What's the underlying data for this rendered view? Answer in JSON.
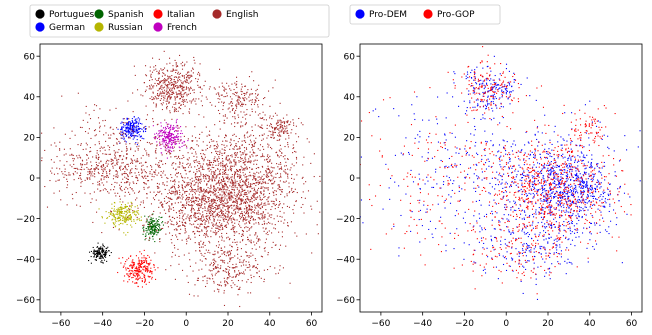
{
  "chart_data": [
    {
      "type": "scatter",
      "title": "",
      "xlabel": "",
      "ylabel": "",
      "xlim": [
        -70,
        65
      ],
      "ylim": [
        -66,
        66
      ],
      "xticks": [
        -60,
        -40,
        -20,
        0,
        20,
        40,
        60
      ],
      "yticks": [
        -60,
        -40,
        -20,
        0,
        20,
        40,
        60
      ],
      "grid": false,
      "legend_position": "top-left, outside above plot, 5 columns",
      "series": [
        {
          "name": "Portuguese",
          "color": "#000000",
          "clusters": [
            {
              "cx": -41,
              "cy": -37,
              "sx": 2.2,
              "sy": 1.8,
              "n": 150
            }
          ]
        },
        {
          "name": "German",
          "color": "#0000ff",
          "clusters": [
            {
              "cx": -26,
              "cy": 24,
              "sx": 3.0,
              "sy": 2.4,
              "n": 220
            }
          ]
        },
        {
          "name": "Spanish",
          "color": "#006400",
          "clusters": [
            {
              "cx": -16,
              "cy": -24,
              "sx": 2.0,
              "sy": 2.8,
              "n": 160
            }
          ]
        },
        {
          "name": "Russian",
          "color": "#b5b500",
          "clusters": [
            {
              "cx": -30,
              "cy": -18,
              "sx": 4.0,
              "sy": 3.0,
              "n": 220
            }
          ]
        },
        {
          "name": "Italian",
          "color": "#ff0000",
          "clusters": [
            {
              "cx": -22,
              "cy": -45,
              "sx": 3.4,
              "sy": 3.5,
              "n": 230
            }
          ]
        },
        {
          "name": "French",
          "color": "#bf00bf",
          "clusters": [
            {
              "cx": -8,
              "cy": 20,
              "sx": 3.4,
              "sy": 3.4,
              "n": 240
            }
          ]
        },
        {
          "name": "English",
          "color": "#a52a2a",
          "clusters": [
            {
              "cx": -6,
              "cy": 45,
              "sx": 7,
              "sy": 6,
              "n": 450
            },
            {
              "cx": 25,
              "cy": -5,
              "sx": 14,
              "sy": 15,
              "n": 1700
            },
            {
              "cx": 5,
              "cy": -12,
              "sx": 12,
              "sy": 12,
              "n": 650
            },
            {
              "cx": -38,
              "cy": 5,
              "sx": 15,
              "sy": 7,
              "n": 380
            },
            {
              "cx": 25,
              "cy": 38,
              "sx": 6,
              "sy": 5,
              "n": 170
            },
            {
              "cx": 45,
              "cy": 25,
              "sx": 4,
              "sy": 3,
              "n": 110
            },
            {
              "cx": 20,
              "cy": -45,
              "sx": 10,
              "sy": 6,
              "n": 250
            },
            {
              "cx": -30,
              "cy": 10,
              "sx": 15,
              "sy": 15,
              "n": 300
            }
          ]
        }
      ]
    },
    {
      "type": "scatter",
      "title": "",
      "xlabel": "",
      "ylabel": "",
      "xlim": [
        -70,
        65
      ],
      "ylim": [
        -66,
        66
      ],
      "xticks": [
        -60,
        -40,
        -20,
        0,
        20,
        40,
        60
      ],
      "yticks": [
        -60,
        -40,
        -20,
        0,
        20,
        40,
        60
      ],
      "grid": false,
      "legend_position": "top-left, outside above plot, 2 columns",
      "series": [
        {
          "name": "Pro-DEM",
          "color": "#0000ff",
          "clusters": [
            {
              "cx": -8,
              "cy": 45,
              "sx": 7,
              "sy": 6,
              "n": 170
            },
            {
              "cx": 25,
              "cy": -5,
              "sx": 14,
              "sy": 13,
              "n": 800
            },
            {
              "cx": 35,
              "cy": -8,
              "sx": 5,
              "sy": 8,
              "n": 150
            },
            {
              "cx": -20,
              "cy": 0,
              "sx": 25,
              "sy": 20,
              "n": 300
            },
            {
              "cx": 10,
              "cy": -35,
              "sx": 12,
              "sy": 8,
              "n": 150
            }
          ]
        },
        {
          "name": "Pro-GOP",
          "color": "#ff0000",
          "clusters": [
            {
              "cx": -8,
              "cy": 45,
              "sx": 7,
              "sy": 6,
              "n": 150
            },
            {
              "cx": 22,
              "cy": -5,
              "sx": 14,
              "sy": 13,
              "n": 650
            },
            {
              "cx": 40,
              "cy": 25,
              "sx": 4,
              "sy": 4,
              "n": 60
            },
            {
              "cx": -20,
              "cy": 0,
              "sx": 25,
              "sy": 20,
              "n": 280
            },
            {
              "cx": 10,
              "cy": -35,
              "sx": 12,
              "sy": 8,
              "n": 140
            }
          ]
        }
      ]
    }
  ]
}
